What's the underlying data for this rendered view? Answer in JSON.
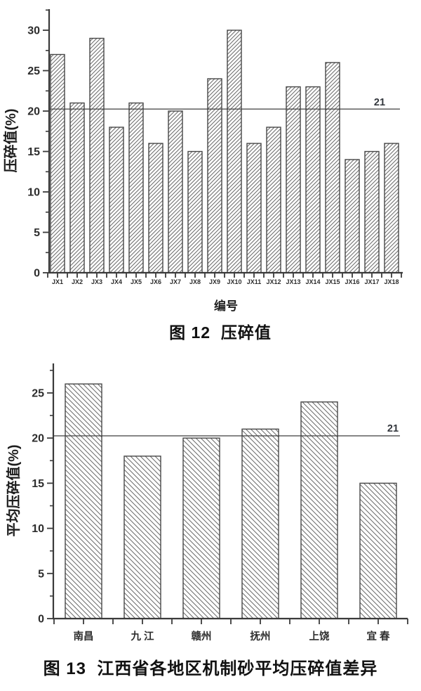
{
  "figures": [
    {
      "caption": "图 12  压碎值"
    },
    {
      "caption": "图 13  江西省各地区机制砂平均压碎值差异"
    }
  ],
  "chart_data": [
    {
      "type": "bar",
      "title": "图 12 压碎值",
      "categories": [
        "JX1",
        "JX2",
        "JX3",
        "JX4",
        "JX5",
        "JX6",
        "JX7",
        "JX8",
        "JX9",
        "JX10",
        "JX11",
        "JX12",
        "JX13",
        "JX14",
        "JX15",
        "JX16",
        "JX17",
        "JX18"
      ],
      "values": [
        27,
        21,
        29,
        18,
        21,
        16,
        20,
        15,
        24,
        30,
        16,
        18,
        23,
        23,
        26,
        14,
        15,
        16
      ],
      "xlabel": "编号",
      "ylabel": "压碎值(%)",
      "ylim": [
        0,
        33
      ],
      "yticks": [
        0,
        5,
        10,
        15,
        20,
        25,
        30
      ],
      "minor_tick_step": 2.5,
      "reference_line": {
        "label": "21",
        "value": 21,
        "drawn_at": 20.25
      },
      "hatch": "forward-diagonal",
      "bar_fill": "#ffffff",
      "bar_stroke": "#474747",
      "grid": false,
      "legend": "none"
    },
    {
      "type": "bar",
      "title": "图 13 江西省各地区机制砂平均压碎值差异",
      "categories": [
        "南昌",
        "九 江",
        "赣州",
        "抚州",
        "上饶",
        "宜 春"
      ],
      "values": [
        26,
        18,
        20,
        21,
        24,
        15
      ],
      "xlabel": "",
      "ylabel": "平均压碎值(%)",
      "ylim": [
        0,
        28
      ],
      "yticks": [
        0,
        5,
        10,
        15,
        20,
        25
      ],
      "minor_tick_step": 2.5,
      "reference_line": {
        "label": "21",
        "value": 21,
        "drawn_at": 20.25
      },
      "hatch": "backward-diagonal",
      "bar_fill": "#ffffff",
      "bar_stroke": "#474747",
      "grid": false,
      "legend": "none"
    }
  ],
  "colors": {
    "background": "#ffffff",
    "axis": "#3a3a3a",
    "text": "#2d2d2d",
    "hatch_line": "#6a6a6a",
    "reference_line": "#3f3f3f"
  }
}
